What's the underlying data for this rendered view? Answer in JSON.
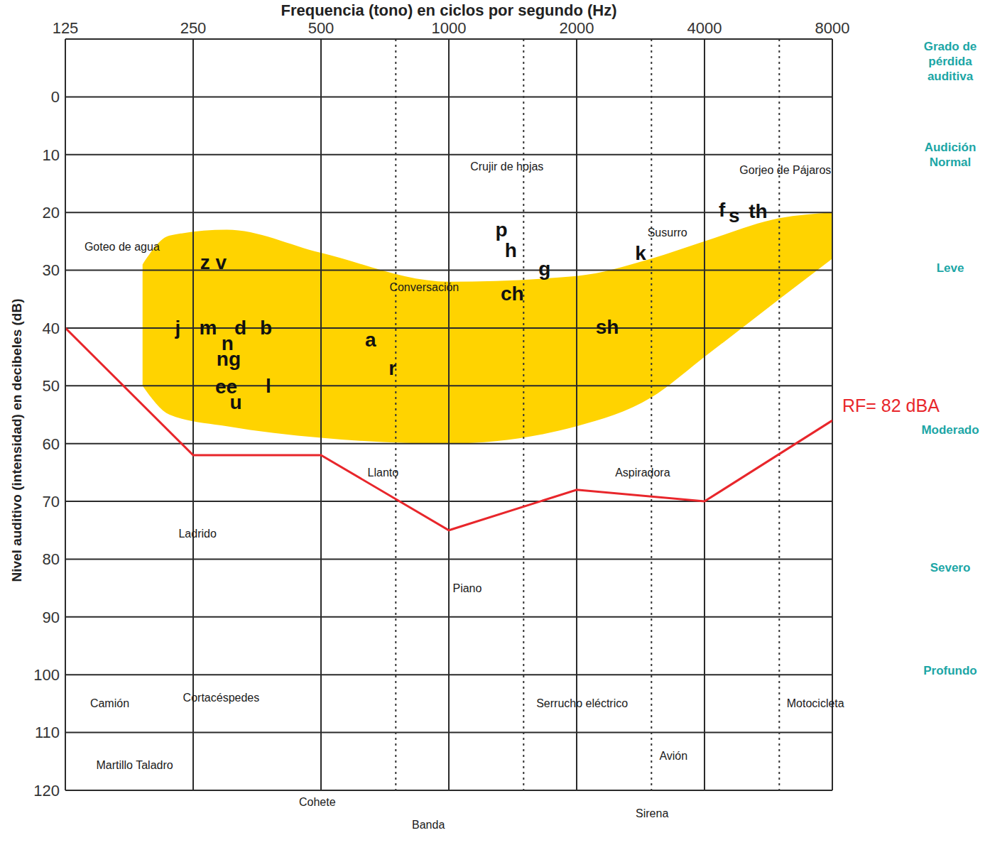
{
  "chart_data": {
    "type": "line",
    "x_label": "Frequencia (tono) en ciclos por segundo (Hz)",
    "y_label": "Nivel auditivo (intensidad) en decibeles (dB)",
    "x": [
      125,
      250,
      500,
      1000,
      2000,
      4000,
      8000
    ],
    "series": [
      {
        "color": "#e8262b",
        "values": [
          40,
          62,
          62,
          75,
          68,
          70,
          56
        ]
      }
    ],
    "xlim": [
      125,
      8000
    ],
    "xticks": [
      125,
      250,
      500,
      1000,
      2000,
      4000,
      8000
    ],
    "ylim": [
      -10,
      120
    ],
    "yticks": [
      0,
      10,
      20,
      30,
      40,
      50,
      60,
      70,
      80,
      90,
      100,
      110,
      120
    ],
    "log": "x",
    "grid": true,
    "dotted_lines": [
      750,
      1500,
      3000,
      6000
    ],
    "speech_area": {
      "color": "#ffd300",
      "x": [
        190,
        220,
        300,
        500,
        1000,
        2000,
        3000,
        4000,
        6000,
        8000
      ],
      "upper": [
        29,
        24,
        23,
        27,
        32,
        31,
        28,
        25,
        21,
        20
      ],
      "lower": [
        50,
        55,
        57,
        59,
        60,
        57,
        52,
        45,
        35,
        28
      ]
    },
    "end_label": {
      "text": "RF= 82 dBA",
      "color": "#e8262b"
    },
    "sound_labels": [
      {
        "text": "Goteo de agua",
        "x": 170,
        "y": 26
      },
      {
        "text": "Crujir de hojas",
        "x": 1370,
        "y": 12
      },
      {
        "text": "Gorjeo de Pájaros",
        "x": 6200,
        "y": 12.7
      },
      {
        "text": "Susurro",
        "x": 3270,
        "y": 23.5
      },
      {
        "text": "Conversación",
        "x": 875,
        "y": 33
      },
      {
        "text": "Llanto",
        "x": 700,
        "y": 65
      },
      {
        "text": "Aspiradora",
        "x": 2860,
        "y": 65
      },
      {
        "text": "Ladrido",
        "x": 256,
        "y": 75.6
      },
      {
        "text": "Piano",
        "x": 1105,
        "y": 85
      },
      {
        "text": "Camión",
        "x": 159,
        "y": 105
      },
      {
        "text": "Cortacéspedes",
        "x": 291,
        "y": 104
      },
      {
        "text": "Serrucho eléctrico",
        "x": 2060,
        "y": 105
      },
      {
        "text": "Motocicleta",
        "x": 7300,
        "y": 105
      },
      {
        "text": "Martillo Taladro",
        "x": 182,
        "y": 115.6
      },
      {
        "text": "Cohete",
        "x": 490,
        "y": 122
      },
      {
        "text": "Banda",
        "x": 895,
        "y": 126
      },
      {
        "text": "Avión",
        "x": 3380,
        "y": 114
      },
      {
        "text": "Sirena",
        "x": 3010,
        "y": 124
      }
    ],
    "phonemes": [
      {
        "text": "z v",
        "x": 279,
        "y": 28.7
      },
      {
        "text": "j",
        "x": 230,
        "y": 40
      },
      {
        "text": "m",
        "x": 271,
        "y": 40
      },
      {
        "text": "d",
        "x": 323,
        "y": 40
      },
      {
        "text": "b",
        "x": 371,
        "y": 40
      },
      {
        "text": "n",
        "x": 301,
        "y": 42.6
      },
      {
        "text": "ng",
        "x": 303,
        "y": 45.3
      },
      {
        "text": "ee",
        "x": 299,
        "y": 50.2
      },
      {
        "text": "u",
        "x": 315,
        "y": 52.8
      },
      {
        "text": "l",
        "x": 376,
        "y": 50
      },
      {
        "text": "a",
        "x": 654,
        "y": 42
      },
      {
        "text": "r",
        "x": 737,
        "y": 47
      },
      {
        "text": "p",
        "x": 1330,
        "y": 23
      },
      {
        "text": "h",
        "x": 1400,
        "y": 26.5
      },
      {
        "text": "g",
        "x": 1680,
        "y": 29.7
      },
      {
        "text": "ch",
        "x": 1410,
        "y": 34
      },
      {
        "text": "sh",
        "x": 2360,
        "y": 39.8
      },
      {
        "text": "k",
        "x": 2830,
        "y": 27
      },
      {
        "text": "f",
        "x": 4400,
        "y": 19.6
      },
      {
        "text": "s",
        "x": 4700,
        "y": 20.5
      },
      {
        "text": "th",
        "x": 5350,
        "y": 19.8
      }
    ],
    "loss_scale": {
      "title": "Grado de pérdida auditiva",
      "levels": [
        "Audición Normal",
        "Leve",
        "Moderado",
        "Severo",
        "Profundo"
      ],
      "color": "#1ca6a6"
    }
  }
}
